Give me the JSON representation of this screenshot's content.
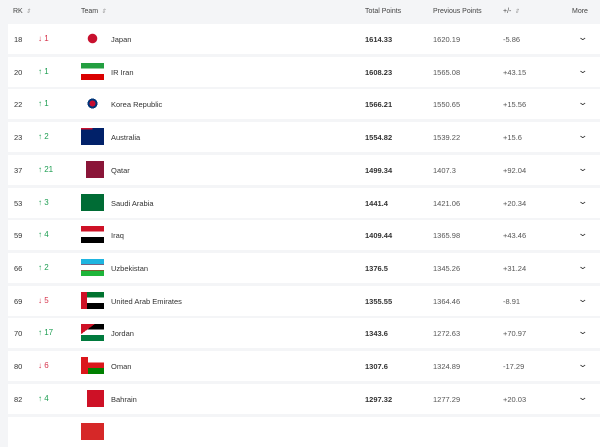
{
  "header": {
    "rank": "RK",
    "team": "Team",
    "total": "Total Points",
    "previous": "Previous Points",
    "diff": "+/-",
    "more": "More"
  },
  "colors": {
    "up": "#1e9e52",
    "down": "#d6334b"
  },
  "rows": [
    {
      "rank": "18",
      "dir": "down",
      "move": "1",
      "team": "Japan",
      "flag": "japan",
      "total": "1614.33",
      "previous": "1620.19",
      "diff": "-5.86"
    },
    {
      "rank": "20",
      "dir": "up",
      "move": "1",
      "team": "IR Iran",
      "flag": "iran",
      "total": "1608.23",
      "previous": "1565.08",
      "diff": "+43.15"
    },
    {
      "rank": "22",
      "dir": "up",
      "move": "1",
      "team": "Korea Republic",
      "flag": "korea",
      "total": "1566.21",
      "previous": "1550.65",
      "diff": "+15.56"
    },
    {
      "rank": "23",
      "dir": "up",
      "move": "2",
      "team": "Australia",
      "flag": "australia",
      "total": "1554.82",
      "previous": "1539.22",
      "diff": "+15.6"
    },
    {
      "rank": "37",
      "dir": "up",
      "move": "21",
      "team": "Qatar",
      "flag": "qatar",
      "total": "1499.34",
      "previous": "1407.3",
      "diff": "+92.04"
    },
    {
      "rank": "53",
      "dir": "up",
      "move": "3",
      "team": "Saudi Arabia",
      "flag": "saudi",
      "total": "1441.4",
      "previous": "1421.06",
      "diff": "+20.34"
    },
    {
      "rank": "59",
      "dir": "up",
      "move": "4",
      "team": "Iraq",
      "flag": "iraq",
      "total": "1409.44",
      "previous": "1365.98",
      "diff": "+43.46"
    },
    {
      "rank": "66",
      "dir": "up",
      "move": "2",
      "team": "Uzbekistan",
      "flag": "uzbekistan",
      "total": "1376.5",
      "previous": "1345.26",
      "diff": "+31.24"
    },
    {
      "rank": "69",
      "dir": "down",
      "move": "5",
      "team": "United Arab Emirates",
      "flag": "uae",
      "total": "1355.55",
      "previous": "1364.46",
      "diff": "-8.91"
    },
    {
      "rank": "70",
      "dir": "up",
      "move": "17",
      "team": "Jordan",
      "flag": "jordan",
      "total": "1343.6",
      "previous": "1272.63",
      "diff": "+70.97"
    },
    {
      "rank": "80",
      "dir": "down",
      "move": "6",
      "team": "Oman",
      "flag": "oman",
      "total": "1307.6",
      "previous": "1324.89",
      "diff": "-17.29"
    },
    {
      "rank": "82",
      "dir": "up",
      "move": "4",
      "team": "Bahrain",
      "flag": "bahrain",
      "total": "1297.32",
      "previous": "1277.29",
      "diff": "+20.03"
    }
  ]
}
